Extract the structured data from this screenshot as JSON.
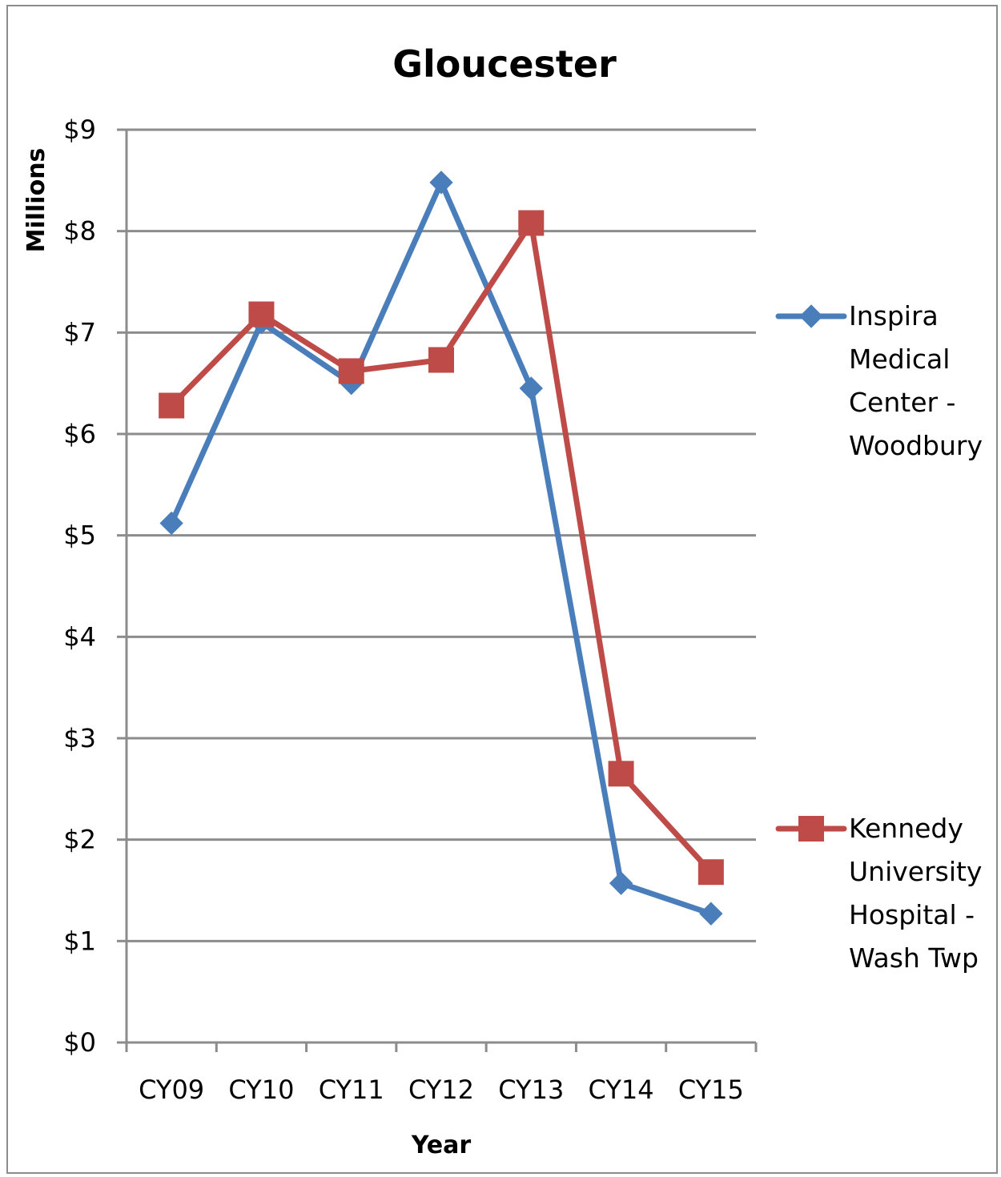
{
  "chart_data": {
    "type": "line",
    "title": "Gloucester",
    "xlabel": "Year",
    "ylabel": "Millions",
    "categories": [
      "CY09",
      "CY10",
      "CY11",
      "CY12",
      "CY13",
      "CY14",
      "CY15"
    ],
    "ylim": [
      0,
      9
    ],
    "yticks": [
      "$0",
      "$1",
      "$2",
      "$3",
      "$4",
      "$5",
      "$6",
      "$7",
      "$8",
      "$9"
    ],
    "grid": true,
    "legend_position": "right",
    "series": [
      {
        "name": "Inspira Medical Center - Woodbury",
        "name_lines": [
          "Inspira",
          "Medical",
          "Center -",
          "Woodbury"
        ],
        "marker": "diamond",
        "color": "#4a7ebb",
        "values": [
          5.12,
          7.1,
          6.5,
          8.48,
          6.45,
          1.57,
          1.27
        ]
      },
      {
        "name": "Kennedy University Hospital - Wash Twp",
        "name_lines": [
          "Kennedy",
          "University",
          "Hospital -",
          "Wash Twp"
        ],
        "marker": "square",
        "color": "#be4b48",
        "values": [
          6.28,
          7.18,
          6.62,
          6.73,
          8.08,
          2.65,
          1.68
        ]
      }
    ]
  }
}
